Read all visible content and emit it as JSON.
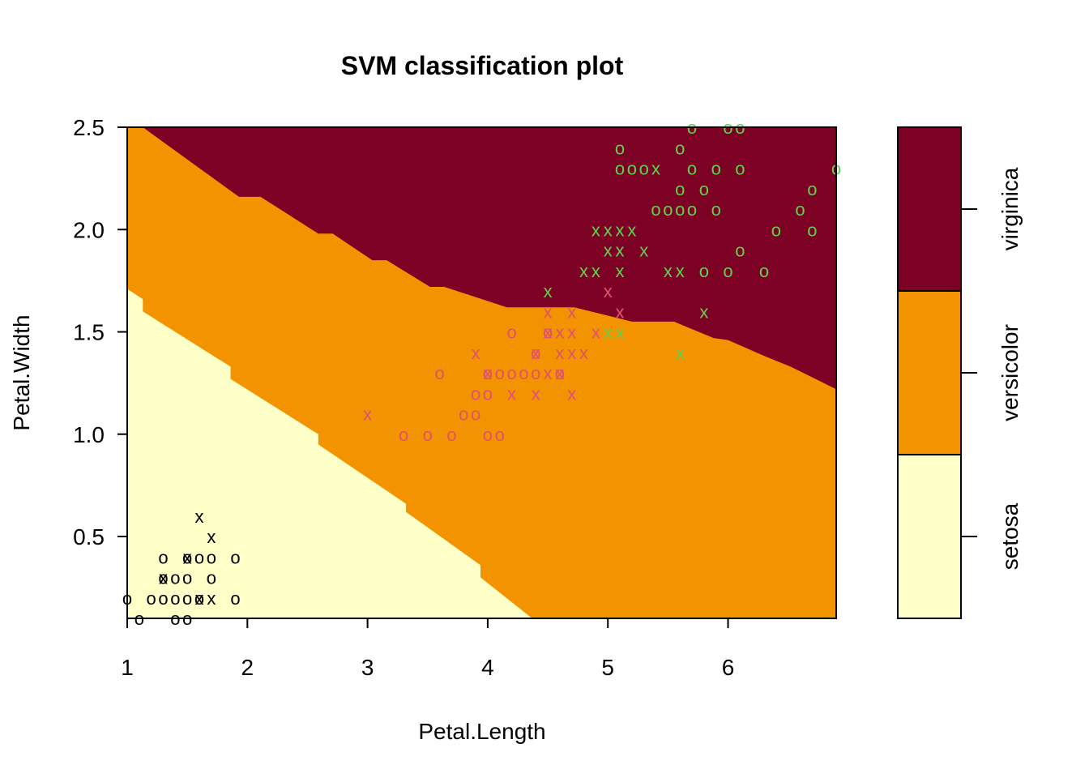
{
  "chart_data": {
    "type": "scatter",
    "title": "SVM classification plot",
    "xlabel": "Petal.Length",
    "ylabel": "Petal.Width",
    "xlim": [
      1.0,
      6.9
    ],
    "ylim": [
      0.1,
      2.5
    ],
    "x_ticks": [
      1,
      2,
      3,
      4,
      5,
      6
    ],
    "y_ticks": [
      0.5,
      1.0,
      1.5,
      2.0,
      2.5
    ],
    "x_tick_labels": [
      "1",
      "2",
      "3",
      "4",
      "5",
      "6"
    ],
    "y_tick_labels": [
      "0.5",
      "1.0",
      "1.5",
      "2.0",
      "2.5"
    ],
    "grid": false,
    "legend_position": "right colorbar",
    "classes": [
      {
        "name": "setosa",
        "region_color": "#FFFFC8",
        "point_color": "#000000"
      },
      {
        "name": "versicolor",
        "region_color": "#F39300",
        "point_color": "#DF536B"
      },
      {
        "name": "virginica",
        "region_color": "#7D0025",
        "point_color": "#61D04F"
      }
    ],
    "marker_legend": {
      "support_vector": "X",
      "other": "O"
    },
    "boundaries": {
      "setosa_versicolor": [
        [
          1.0,
          1.71
        ],
        [
          1.13,
          1.66
        ],
        [
          1.13,
          1.6
        ],
        [
          1.86,
          1.33
        ],
        [
          1.86,
          1.27
        ],
        [
          2.59,
          1.0
        ],
        [
          2.59,
          0.95
        ],
        [
          3.32,
          0.66
        ],
        [
          3.32,
          0.62
        ],
        [
          3.94,
          0.36
        ],
        [
          3.94,
          0.3
        ],
        [
          4.37,
          0.1
        ]
      ],
      "versicolor_virginica": [
        [
          1.13,
          2.5
        ],
        [
          1.93,
          2.16
        ],
        [
          2.11,
          2.16
        ],
        [
          2.59,
          1.98
        ],
        [
          2.71,
          1.98
        ],
        [
          3.04,
          1.85
        ],
        [
          3.16,
          1.85
        ],
        [
          3.52,
          1.72
        ],
        [
          3.64,
          1.72
        ],
        [
          4.16,
          1.62
        ],
        [
          4.72,
          1.62
        ],
        [
          5.2,
          1.55
        ],
        [
          5.55,
          1.55
        ],
        [
          5.88,
          1.47
        ],
        [
          6.0,
          1.46
        ],
        [
          6.31,
          1.38
        ],
        [
          6.52,
          1.33
        ],
        [
          6.9,
          1.22
        ]
      ]
    },
    "series": [
      {
        "name": "setosa",
        "points": [
          {
            "x": 1.0,
            "y": 0.2,
            "m": "o"
          },
          {
            "x": 1.1,
            "y": 0.1,
            "m": "o"
          },
          {
            "x": 1.2,
            "y": 0.2,
            "m": "o"
          },
          {
            "x": 1.3,
            "y": 0.2,
            "m": "o"
          },
          {
            "x": 1.3,
            "y": 0.3,
            "m": "o"
          },
          {
            "x": 1.3,
            "y": 0.4,
            "m": "o"
          },
          {
            "x": 1.3,
            "y": 0.3,
            "m": "x"
          },
          {
            "x": 1.4,
            "y": 0.1,
            "m": "o"
          },
          {
            "x": 1.4,
            "y": 0.2,
            "m": "o"
          },
          {
            "x": 1.4,
            "y": 0.3,
            "m": "o"
          },
          {
            "x": 1.5,
            "y": 0.1,
            "m": "o"
          },
          {
            "x": 1.5,
            "y": 0.2,
            "m": "o"
          },
          {
            "x": 1.5,
            "y": 0.3,
            "m": "o"
          },
          {
            "x": 1.5,
            "y": 0.4,
            "m": "o"
          },
          {
            "x": 1.5,
            "y": 0.4,
            "m": "x"
          },
          {
            "x": 1.6,
            "y": 0.2,
            "m": "o"
          },
          {
            "x": 1.6,
            "y": 0.4,
            "m": "o"
          },
          {
            "x": 1.6,
            "y": 0.2,
            "m": "x"
          },
          {
            "x": 1.6,
            "y": 0.6,
            "m": "x"
          },
          {
            "x": 1.7,
            "y": 0.2,
            "m": "x"
          },
          {
            "x": 1.7,
            "y": 0.3,
            "m": "o"
          },
          {
            "x": 1.7,
            "y": 0.4,
            "m": "o"
          },
          {
            "x": 1.7,
            "y": 0.5,
            "m": "x"
          },
          {
            "x": 1.9,
            "y": 0.2,
            "m": "o"
          },
          {
            "x": 1.9,
            "y": 0.4,
            "m": "o"
          }
        ]
      },
      {
        "name": "versicolor",
        "points": [
          {
            "x": 3.0,
            "y": 1.1,
            "m": "x"
          },
          {
            "x": 3.3,
            "y": 1.0,
            "m": "o"
          },
          {
            "x": 3.5,
            "y": 1.0,
            "m": "o"
          },
          {
            "x": 3.6,
            "y": 1.3,
            "m": "o"
          },
          {
            "x": 3.7,
            "y": 1.0,
            "m": "o"
          },
          {
            "x": 3.8,
            "y": 1.1,
            "m": "o"
          },
          {
            "x": 3.9,
            "y": 1.1,
            "m": "o"
          },
          {
            "x": 3.9,
            "y": 1.2,
            "m": "o"
          },
          {
            "x": 3.9,
            "y": 1.4,
            "m": "x"
          },
          {
            "x": 4.0,
            "y": 1.0,
            "m": "o"
          },
          {
            "x": 4.0,
            "y": 1.2,
            "m": "o"
          },
          {
            "x": 4.0,
            "y": 1.3,
            "m": "o"
          },
          {
            "x": 4.0,
            "y": 1.3,
            "m": "x"
          },
          {
            "x": 4.1,
            "y": 1.0,
            "m": "o"
          },
          {
            "x": 4.1,
            "y": 1.3,
            "m": "o"
          },
          {
            "x": 4.2,
            "y": 1.2,
            "m": "x"
          },
          {
            "x": 4.2,
            "y": 1.3,
            "m": "o"
          },
          {
            "x": 4.2,
            "y": 1.5,
            "m": "o"
          },
          {
            "x": 4.3,
            "y": 1.3,
            "m": "o"
          },
          {
            "x": 4.4,
            "y": 1.2,
            "m": "x"
          },
          {
            "x": 4.4,
            "y": 1.3,
            "m": "o"
          },
          {
            "x": 4.4,
            "y": 1.4,
            "m": "o"
          },
          {
            "x": 4.4,
            "y": 1.4,
            "m": "x"
          },
          {
            "x": 4.5,
            "y": 1.3,
            "m": "x"
          },
          {
            "x": 4.5,
            "y": 1.5,
            "m": "o"
          },
          {
            "x": 4.5,
            "y": 1.5,
            "m": "x"
          },
          {
            "x": 4.5,
            "y": 1.6,
            "m": "x"
          },
          {
            "x": 4.6,
            "y": 1.3,
            "m": "o"
          },
          {
            "x": 4.6,
            "y": 1.3,
            "m": "x"
          },
          {
            "x": 4.6,
            "y": 1.4,
            "m": "x"
          },
          {
            "x": 4.6,
            "y": 1.5,
            "m": "x"
          },
          {
            "x": 4.7,
            "y": 1.2,
            "m": "x"
          },
          {
            "x": 4.7,
            "y": 1.4,
            "m": "x"
          },
          {
            "x": 4.7,
            "y": 1.5,
            "m": "x"
          },
          {
            "x": 4.7,
            "y": 1.6,
            "m": "x"
          },
          {
            "x": 4.8,
            "y": 1.4,
            "m": "x"
          },
          {
            "x": 4.9,
            "y": 1.5,
            "m": "x"
          },
          {
            "x": 5.0,
            "y": 1.7,
            "m": "x"
          },
          {
            "x": 5.1,
            "y": 1.6,
            "m": "x"
          }
        ]
      },
      {
        "name": "virginica",
        "points": [
          {
            "x": 4.5,
            "y": 1.7,
            "m": "x"
          },
          {
            "x": 4.8,
            "y": 1.8,
            "m": "x"
          },
          {
            "x": 4.9,
            "y": 1.8,
            "m": "x"
          },
          {
            "x": 4.9,
            "y": 2.0,
            "m": "x"
          },
          {
            "x": 5.0,
            "y": 1.5,
            "m": "x"
          },
          {
            "x": 5.0,
            "y": 1.9,
            "m": "x"
          },
          {
            "x": 5.0,
            "y": 2.0,
            "m": "x"
          },
          {
            "x": 5.1,
            "y": 1.5,
            "m": "x"
          },
          {
            "x": 5.1,
            "y": 1.8,
            "m": "x"
          },
          {
            "x": 5.1,
            "y": 1.9,
            "m": "x"
          },
          {
            "x": 5.1,
            "y": 2.0,
            "m": "x"
          },
          {
            "x": 5.1,
            "y": 2.3,
            "m": "o"
          },
          {
            "x": 5.1,
            "y": 2.4,
            "m": "o"
          },
          {
            "x": 5.2,
            "y": 2.0,
            "m": "x"
          },
          {
            "x": 5.2,
            "y": 2.3,
            "m": "o"
          },
          {
            "x": 5.3,
            "y": 1.9,
            "m": "x"
          },
          {
            "x": 5.3,
            "y": 2.3,
            "m": "o"
          },
          {
            "x": 5.4,
            "y": 2.1,
            "m": "o"
          },
          {
            "x": 5.4,
            "y": 2.3,
            "m": "x"
          },
          {
            "x": 5.5,
            "y": 1.8,
            "m": "x"
          },
          {
            "x": 5.5,
            "y": 2.1,
            "m": "o"
          },
          {
            "x": 5.6,
            "y": 1.4,
            "m": "x"
          },
          {
            "x": 5.6,
            "y": 1.8,
            "m": "x"
          },
          {
            "x": 5.6,
            "y": 2.1,
            "m": "o"
          },
          {
            "x": 5.6,
            "y": 2.2,
            "m": "o"
          },
          {
            "x": 5.6,
            "y": 2.4,
            "m": "o"
          },
          {
            "x": 5.7,
            "y": 2.1,
            "m": "o"
          },
          {
            "x": 5.7,
            "y": 2.3,
            "m": "o"
          },
          {
            "x": 5.7,
            "y": 2.5,
            "m": "o"
          },
          {
            "x": 5.8,
            "y": 1.6,
            "m": "x"
          },
          {
            "x": 5.8,
            "y": 1.8,
            "m": "o"
          },
          {
            "x": 5.8,
            "y": 2.2,
            "m": "o"
          },
          {
            "x": 5.9,
            "y": 2.1,
            "m": "o"
          },
          {
            "x": 5.9,
            "y": 2.3,
            "m": "o"
          },
          {
            "x": 6.0,
            "y": 1.8,
            "m": "o"
          },
          {
            "x": 6.0,
            "y": 2.5,
            "m": "o"
          },
          {
            "x": 6.1,
            "y": 1.9,
            "m": "o"
          },
          {
            "x": 6.1,
            "y": 2.3,
            "m": "o"
          },
          {
            "x": 6.1,
            "y": 2.5,
            "m": "o"
          },
          {
            "x": 6.3,
            "y": 1.8,
            "m": "o"
          },
          {
            "x": 6.4,
            "y": 2.0,
            "m": "o"
          },
          {
            "x": 6.6,
            "y": 2.1,
            "m": "o"
          },
          {
            "x": 6.7,
            "y": 2.0,
            "m": "o"
          },
          {
            "x": 6.7,
            "y": 2.2,
            "m": "o"
          },
          {
            "x": 6.9,
            "y": 2.3,
            "m": "o"
          }
        ]
      }
    ]
  }
}
